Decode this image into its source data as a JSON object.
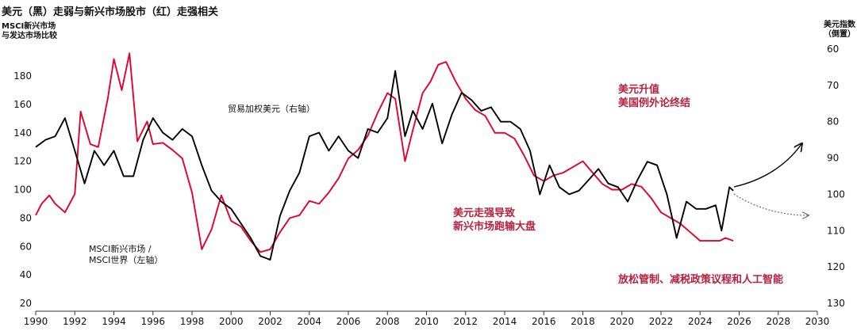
{
  "chart_data": {
    "type": "line",
    "title": "美元（黑）走弱与新兴市场股市（红）走强相关",
    "left_axis_label": [
      "MSCI新兴市场",
      "与发达市场比较"
    ],
    "right_axis_label": [
      "美元指数",
      "（倒置）"
    ],
    "left_axis": {
      "min": 20,
      "max": 190,
      "ticks": [
        20,
        40,
        60,
        80,
        100,
        120,
        140,
        160,
        180
      ]
    },
    "right_axis": {
      "min": 60,
      "max": 130,
      "inverted": true,
      "ticks": [
        60,
        70,
        80,
        90,
        100,
        110,
        120,
        130
      ]
    },
    "x_axis": {
      "min": 1990,
      "max": 2030,
      "ticks": [
        1990,
        1992,
        1994,
        1996,
        1998,
        2000,
        2002,
        2004,
        2006,
        2008,
        2010,
        2012,
        2014,
        2016,
        2018,
        2020,
        2022,
        2024,
        2026,
        2028,
        2030
      ]
    },
    "series": [
      {
        "name": "MSCI新兴市场 / MSCI世界（左轴）",
        "axis": "left",
        "color": "#e4002b",
        "points": [
          [
            1990.0,
            82
          ],
          [
            1990.3,
            90
          ],
          [
            1990.7,
            96
          ],
          [
            1991.0,
            90
          ],
          [
            1991.5,
            84
          ],
          [
            1992.0,
            97
          ],
          [
            1992.3,
            155
          ],
          [
            1992.8,
            132
          ],
          [
            1993.2,
            130
          ],
          [
            1993.7,
            165
          ],
          [
            1994.0,
            192
          ],
          [
            1994.4,
            170
          ],
          [
            1994.8,
            196
          ],
          [
            1995.2,
            134
          ],
          [
            1995.7,
            148
          ],
          [
            1996.0,
            132
          ],
          [
            1996.5,
            133
          ],
          [
            1997.0,
            128
          ],
          [
            1997.5,
            122
          ],
          [
            1998.0,
            98
          ],
          [
            1998.5,
            58
          ],
          [
            1999.0,
            72
          ],
          [
            1999.5,
            96
          ],
          [
            2000.0,
            78
          ],
          [
            2000.5,
            74
          ],
          [
            2001.0,
            64
          ],
          [
            2001.5,
            56
          ],
          [
            2002.0,
            58
          ],
          [
            2002.5,
            70
          ],
          [
            2003.0,
            80
          ],
          [
            2003.5,
            82
          ],
          [
            2004.0,
            92
          ],
          [
            2004.5,
            90
          ],
          [
            2005.0,
            98
          ],
          [
            2005.5,
            108
          ],
          [
            2006.0,
            122
          ],
          [
            2006.5,
            128
          ],
          [
            2007.0,
            138
          ],
          [
            2007.5,
            154
          ],
          [
            2008.0,
            168
          ],
          [
            2008.4,
            164
          ],
          [
            2008.9,
            120
          ],
          [
            2009.3,
            142
          ],
          [
            2009.8,
            168
          ],
          [
            2010.2,
            176
          ],
          [
            2010.6,
            188
          ],
          [
            2011.0,
            190
          ],
          [
            2011.5,
            176
          ],
          [
            2012.0,
            164
          ],
          [
            2012.5,
            156
          ],
          [
            2013.0,
            152
          ],
          [
            2013.5,
            140
          ],
          [
            2014.0,
            140
          ],
          [
            2014.5,
            136
          ],
          [
            2015.0,
            124
          ],
          [
            2015.5,
            110
          ],
          [
            2016.0,
            106
          ],
          [
            2016.5,
            110
          ],
          [
            2017.0,
            112
          ],
          [
            2017.5,
            116
          ],
          [
            2018.0,
            120
          ],
          [
            2018.5,
            112
          ],
          [
            2019.0,
            104
          ],
          [
            2019.5,
            100
          ],
          [
            2020.0,
            100
          ],
          [
            2020.5,
            104
          ],
          [
            2021.0,
            102
          ],
          [
            2021.5,
            94
          ],
          [
            2022.0,
            84
          ],
          [
            2022.5,
            80
          ],
          [
            2023.0,
            76
          ],
          [
            2023.5,
            70
          ],
          [
            2024.0,
            64
          ],
          [
            2024.5,
            64
          ],
          [
            2025.0,
            64
          ],
          [
            2025.3,
            66
          ],
          [
            2025.7,
            64
          ]
        ]
      },
      {
        "name": "贸易加权美元（右轴）",
        "axis": "right",
        "color": "#000000",
        "points": [
          [
            1990.0,
            87
          ],
          [
            1990.5,
            85
          ],
          [
            1991.0,
            84
          ],
          [
            1991.5,
            79
          ],
          [
            1992.0,
            88
          ],
          [
            1992.5,
            97
          ],
          [
            1993.0,
            88
          ],
          [
            1993.5,
            92
          ],
          [
            1994.0,
            88
          ],
          [
            1994.5,
            95
          ],
          [
            1995.0,
            95
          ],
          [
            1995.5,
            85
          ],
          [
            1996.0,
            79
          ],
          [
            1996.5,
            83
          ],
          [
            1997.0,
            85
          ],
          [
            1997.5,
            82
          ],
          [
            1998.0,
            84
          ],
          [
            1998.5,
            92
          ],
          [
            1999.0,
            99
          ],
          [
            1999.5,
            102
          ],
          [
            2000.0,
            104
          ],
          [
            2000.5,
            108
          ],
          [
            2001.0,
            112
          ],
          [
            2001.5,
            117
          ],
          [
            2002.0,
            118
          ],
          [
            2002.5,
            106
          ],
          [
            2003.0,
            99
          ],
          [
            2003.5,
            94
          ],
          [
            2004.0,
            84
          ],
          [
            2004.5,
            83
          ],
          [
            2005.0,
            88
          ],
          [
            2005.5,
            84
          ],
          [
            2006.0,
            88
          ],
          [
            2006.5,
            90
          ],
          [
            2007.0,
            82
          ],
          [
            2007.5,
            83
          ],
          [
            2008.0,
            79
          ],
          [
            2008.4,
            66
          ],
          [
            2008.9,
            84
          ],
          [
            2009.3,
            77
          ],
          [
            2009.8,
            82
          ],
          [
            2010.3,
            75
          ],
          [
            2010.8,
            86
          ],
          [
            2011.3,
            78
          ],
          [
            2011.8,
            72
          ],
          [
            2012.3,
            74
          ],
          [
            2012.8,
            77
          ],
          [
            2013.3,
            76
          ],
          [
            2013.8,
            80
          ],
          [
            2014.3,
            80
          ],
          [
            2014.8,
            82
          ],
          [
            2015.3,
            88
          ],
          [
            2015.8,
            100
          ],
          [
            2016.3,
            92
          ],
          [
            2016.8,
            98
          ],
          [
            2017.3,
            100
          ],
          [
            2017.8,
            99
          ],
          [
            2018.3,
            96
          ],
          [
            2018.8,
            93
          ],
          [
            2019.3,
            97
          ],
          [
            2019.8,
            98
          ],
          [
            2020.3,
            102
          ],
          [
            2020.8,
            96
          ],
          [
            2021.3,
            91
          ],
          [
            2021.8,
            92
          ],
          [
            2022.3,
            100
          ],
          [
            2022.8,
            112
          ],
          [
            2023.3,
            102
          ],
          [
            2023.8,
            104
          ],
          [
            2024.3,
            104
          ],
          [
            2024.8,
            103
          ],
          [
            2025.1,
            110
          ],
          [
            2025.5,
            98
          ],
          [
            2025.7,
            99
          ]
        ]
      }
    ],
    "annotations": {
      "dollar_label": "贸易加权美元（右轴）",
      "em_label": [
        "MSCI新兴市场 /",
        "MSCI世界（左轴）"
      ],
      "red_top": [
        "美元升值",
        "美国例外论终结"
      ],
      "red_mid": [
        "美元走强导致",
        "新兴市场跑输大盘"
      ],
      "red_bottom": "放松管制、减税政策议程和人工智能"
    }
  }
}
